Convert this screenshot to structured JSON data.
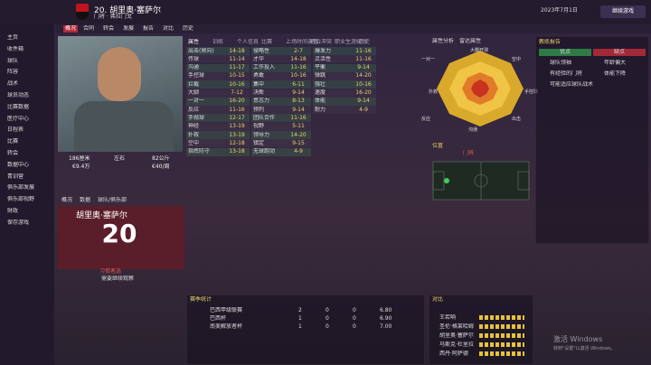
{
  "header": {
    "name": "20. 胡里奥·塞萨尔",
    "subtitle": "门将 · 弗拉门戈",
    "date": "2023年7月1日",
    "continue": "继续游戏"
  },
  "sidebar": [
    "主页",
    "收件箱",
    "球队",
    "阵容",
    "战术",
    "球员动态",
    "比赛数据",
    "医疗中心",
    "日程表",
    "比赛",
    "转会",
    "数据中心",
    "青训营",
    "俱乐部发展",
    "俱乐部视野",
    "财政",
    "保存游戏"
  ],
  "tabs": [
    "概况",
    "合同",
    "转会",
    "发展",
    "报告",
    "对比",
    "历史"
  ],
  "subtabs": [
    "属性",
    "训练",
    "个人信息",
    "比赛",
    "上场时间调查",
    "转会冲突",
    "职业生涯统计",
    "历史"
  ],
  "player": {
    "height": "186厘米",
    "foot": "左右",
    "weight": "82公斤",
    "value": "€9.4万",
    "wage": "€40/周",
    "card_name": "胡里奥·塞萨尔",
    "number": "20",
    "role": "习惯者选",
    "note": "需要继续观察",
    "card_tabs": [
      "概况",
      "数据",
      "球队/俱乐部"
    ]
  },
  "attributes": {
    "goalkeeping": [
      [
        "出击(倾向)",
        "14-18"
      ],
      [
        "传球",
        "11-14"
      ],
      [
        "沟通",
        "11-17"
      ],
      [
        "手控球",
        "10-15"
      ],
      [
        "拦截",
        "10-16"
      ],
      [
        "大脚",
        "7-12"
      ],
      [
        "一对一",
        "16-20"
      ],
      [
        "反应",
        "11-16"
      ],
      [
        "手抛球",
        "12-17"
      ],
      [
        "神经",
        "13-19"
      ],
      [
        "扑救",
        "13-19"
      ],
      [
        "空中",
        "12-18"
      ],
      [
        "指挥防守",
        "13-18"
      ]
    ],
    "mental": [
      [
        "侵略性",
        "2-7"
      ],
      [
        "才华",
        "14-18"
      ],
      [
        "工作投入",
        "11-16"
      ],
      [
        "勇敢",
        "10-16"
      ],
      [
        "集中",
        "6-11"
      ],
      [
        "决断",
        "9-14"
      ],
      [
        "意志力",
        "8-13"
      ],
      [
        "预判",
        "9-14"
      ],
      [
        "团队合作",
        "11-16"
      ],
      [
        "视野",
        "5-11"
      ],
      [
        "领导力",
        "14-20"
      ],
      [
        "镇定",
        "9-15"
      ],
      [
        "无球跑动",
        "4-9"
      ]
    ],
    "physical": [
      [
        "爆发力",
        "11-16"
      ],
      [
        "灵活性",
        "11-16"
      ],
      [
        "平衡",
        "9-14"
      ],
      [
        "弹跳",
        "14-20"
      ],
      [
        "强壮",
        "10-16"
      ],
      [
        "速度",
        "16-20"
      ],
      [
        "体能",
        "9-14"
      ],
      [
        "耐力",
        "4-9"
      ]
    ]
  },
  "radar": {
    "tabs": [
      "属性分析",
      "雷达属性"
    ],
    "labels": [
      "大脚开球",
      "空中",
      "手控球",
      "出击",
      "沟通",
      "反应",
      "扑救",
      "一对一"
    ]
  },
  "report": {
    "title": "教练报告",
    "pros_title": "优点",
    "cons_title": "缺点",
    "pros": [
      "球队领袖",
      "有经验的门将",
      "可能适应球队战术"
    ],
    "cons": [
      "年龄偏大",
      "体能下降"
    ]
  },
  "pitch": {
    "title": "位置",
    "position": "门将"
  },
  "stats": {
    "title": "赛季统计",
    "rows": [
      [
        "巴西甲级联赛",
        "2",
        "0",
        "0",
        "6.80"
      ],
      [
        "巴西杯",
        "1",
        "0",
        "0",
        "6.90"
      ],
      [
        "南美解放者杯",
        "1",
        "0",
        "0",
        "7.00"
      ]
    ]
  },
  "ratings": {
    "title": "对比",
    "rows": [
      "王若响",
      "圣伦·格莱哈姆",
      "胡里奥·塞萨尔",
      "马斯克·杜里拉",
      "西丹·阿萨德"
    ]
  },
  "watermark": {
    "line1": "激活 Windows",
    "line2": "转到\"设置\"以激活 Windows。"
  }
}
